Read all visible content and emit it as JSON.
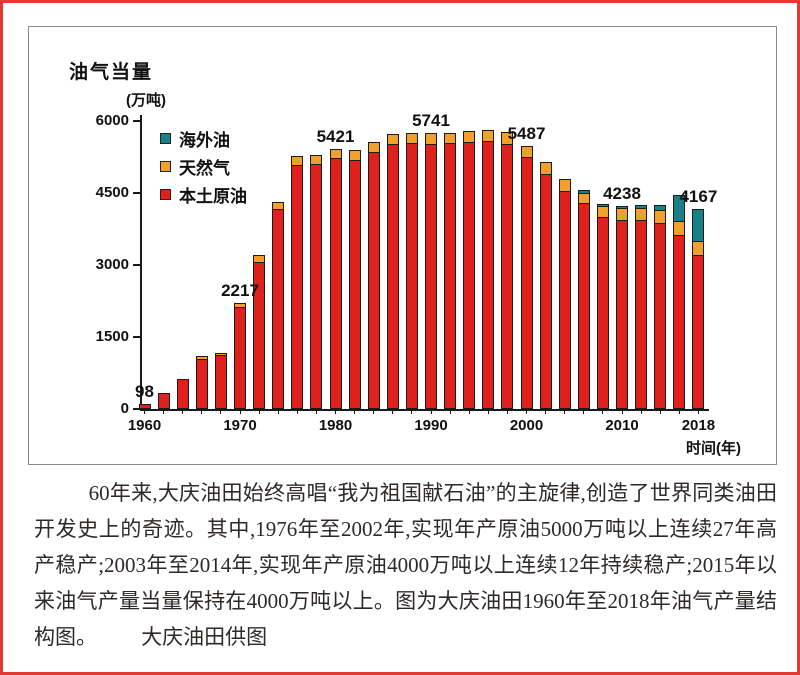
{
  "page": {
    "border_color": "#e23a31",
    "background": "#ffffff"
  },
  "chart": {
    "title": "油气当量",
    "unit": "(万吨)",
    "x_axis_title": "时间(年)",
    "legend": [
      {
        "label": "海外油",
        "color": "#17818a"
      },
      {
        "label": "天然气",
        "color": "#f0a02b"
      },
      {
        "label": "本土原油",
        "color": "#df211b"
      }
    ]
  },
  "chart_data": {
    "type": "bar",
    "stacked": true,
    "title": "油气当量(万吨)",
    "xlabel": "时间(年)",
    "ylabel": "油气当量(万吨)",
    "ylim": [
      0,
      6000
    ],
    "y_ticks": [
      0,
      1500,
      3000,
      4500,
      6000
    ],
    "x_tick_labels": [
      1960,
      1970,
      1980,
      1990,
      2000,
      2010,
      2018
    ],
    "grid": false,
    "legend_position": "upper-left-inside",
    "categories": [
      1960,
      1962,
      1964,
      1966,
      1968,
      1970,
      1972,
      1974,
      1976,
      1978,
      1980,
      1982,
      1984,
      1986,
      1988,
      1990,
      1992,
      1994,
      1996,
      1998,
      2000,
      2002,
      2004,
      2006,
      2008,
      2010,
      2012,
      2014,
      2016,
      2018
    ],
    "series": [
      {
        "name": "本土原油",
        "color": "#df211b",
        "values": [
          98,
          340,
          625,
          1045,
          1120,
          2127,
          3060,
          4160,
          5090,
          5110,
          5226,
          5190,
          5355,
          5520,
          5535,
          5521,
          5535,
          5570,
          5575,
          5530,
          5242,
          4890,
          4535,
          4300,
          4000,
          3938,
          3940,
          3870,
          3620,
          3204
        ]
      },
      {
        "name": "天然气",
        "color": "#f0a02b",
        "values": [
          0,
          0,
          0,
          25,
          50,
          90,
          140,
          160,
          180,
          190,
          195,
          200,
          205,
          210,
          215,
          220,
          225,
          230,
          235,
          240,
          245,
          250,
          255,
          210,
          220,
          240,
          250,
          270,
          290,
          290
        ]
      },
      {
        "name": "海外油",
        "color": "#17818a",
        "values": [
          0,
          0,
          0,
          0,
          0,
          0,
          0,
          0,
          0,
          0,
          0,
          0,
          0,
          0,
          0,
          0,
          0,
          0,
          0,
          0,
          0,
          0,
          0,
          40,
          50,
          60,
          70,
          100,
          540,
          673
        ]
      }
    ],
    "data_labels": [
      {
        "year": 1960,
        "value": "98"
      },
      {
        "year": 1970,
        "value": "2217"
      },
      {
        "year": 1980,
        "value": "5421"
      },
      {
        "year": 1990,
        "value": "5741"
      },
      {
        "year": 2000,
        "value": "5487"
      },
      {
        "year": 2010,
        "value": "4238"
      },
      {
        "year": 2018,
        "value": "4167"
      }
    ]
  },
  "caption": {
    "body": "60年来,大庆油田始终高唱“我为祖国献石油”的主旋律,创造了世界同类油田开发史上的奇迹。其中,1976年至2002年,实现年产原油5000万吨以上连续27年高产稳产;2003年至2014年,实现年产原油4000万吨以上连续12年持续稳产;2015年以来油气产量当量保持在4000万吨以上。图为大庆油田1960年至2018年油气产量结构图。",
    "credit": "大庆油田供图"
  }
}
